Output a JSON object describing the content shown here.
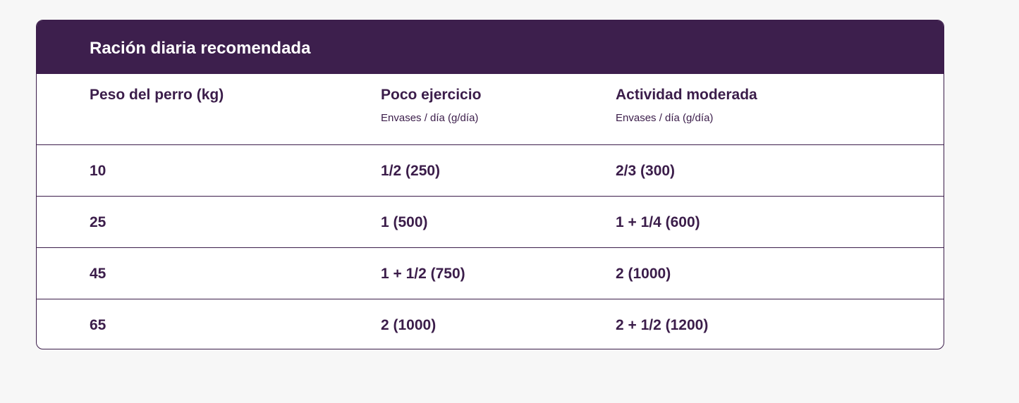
{
  "title": "Ración diaria recomendada",
  "columns": [
    {
      "label": "Peso del perro (kg)",
      "sub": ""
    },
    {
      "label": "Poco ejercicio",
      "sub": "Envases / día (g/día)"
    },
    {
      "label": "Actividad moderada",
      "sub": "Envases / día (g/día)"
    }
  ],
  "rows": [
    [
      "10",
      "1/2 (250)",
      "2/3 (300)"
    ],
    [
      "25",
      "1 (500)",
      "1 + 1/4 (600)"
    ],
    [
      "45",
      "1 + 1/2 (750)",
      "2 (1000)"
    ],
    [
      "65",
      "2 (1000)",
      "2 + 1/2 (1200)"
    ]
  ]
}
